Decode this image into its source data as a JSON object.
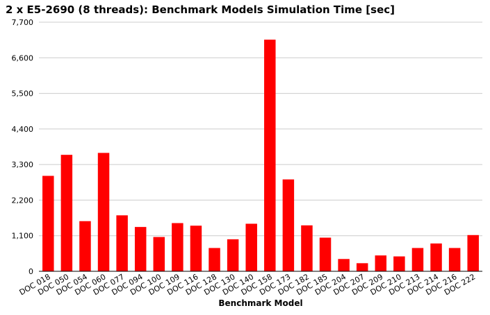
{
  "chart_data": {
    "type": "bar",
    "title": "2 x E5-2690 (8 threads): Benchmark Models Simulation Time [sec]",
    "xlabel": "Benchmark Model",
    "ylabel": "",
    "ylim": [
      0,
      7700
    ],
    "yticks": [
      0,
      1100,
      2200,
      3300,
      4400,
      5500,
      6600,
      7700
    ],
    "ytick_labels": [
      "0",
      "1,100",
      "2,200",
      "3,300",
      "4,400",
      "5,500",
      "6,600",
      "7,700"
    ],
    "grid": true,
    "bar_color": "#ff0000",
    "categories": [
      "DOC 018",
      "DOC 050",
      "DOC 054",
      "DOC 060",
      "DOC 077",
      "DOC 094",
      "DOC 100",
      "DOC 109",
      "DOC 116",
      "DOC 128",
      "DOC 130",
      "DOC 140",
      "DOC 158",
      "DOC 173",
      "DOC 182",
      "DOC 185",
      "DOC 204",
      "DOC 207",
      "DOC 209",
      "DOC 210",
      "DOC 213",
      "DOC 214",
      "DOC 216",
      "DOC 222"
    ],
    "values": [
      2950,
      3600,
      1550,
      3660,
      1730,
      1370,
      1060,
      1490,
      1410,
      720,
      990,
      1470,
      7160,
      2840,
      1420,
      1040,
      380,
      250,
      490,
      460,
      720,
      860,
      720,
      1120
    ]
  }
}
